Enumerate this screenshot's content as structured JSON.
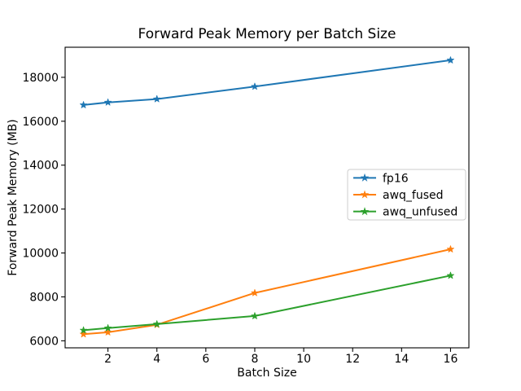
{
  "chart_data": {
    "type": "line",
    "title": "Forward Peak Memory per Batch Size",
    "xlabel": "Batch Size",
    "ylabel": "Forward Peak Memory (MB)",
    "x": [
      1,
      2,
      4,
      8,
      16
    ],
    "series": [
      {
        "name": "fp16",
        "color": "#1f77b4",
        "marker": "star",
        "values": [
          16740,
          16860,
          17010,
          17580,
          18780
        ]
      },
      {
        "name": "awq_fused",
        "color": "#ff7f0e",
        "marker": "star",
        "values": [
          6300,
          6390,
          6730,
          8180,
          10170
        ]
      },
      {
        "name": "awq_unfused",
        "color": "#2ca02c",
        "marker": "star",
        "values": [
          6480,
          6580,
          6760,
          7130,
          8970
        ]
      }
    ],
    "xticks": [
      2,
      4,
      6,
      8,
      10,
      12,
      14,
      16
    ],
    "yticks": [
      6000,
      8000,
      10000,
      12000,
      14000,
      16000,
      18000
    ],
    "xlim": [
      0.25,
      16.75
    ],
    "ylim": [
      5680,
      19370
    ],
    "grid": false,
    "legend": {
      "position": "center-right",
      "entries": [
        "fp16",
        "awq_fused",
        "awq_unfused"
      ]
    },
    "axis_color": "#000000",
    "background": "#ffffff"
  }
}
